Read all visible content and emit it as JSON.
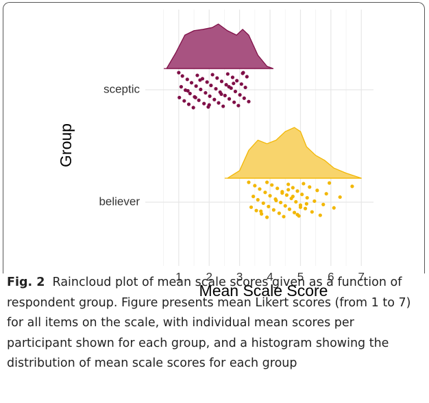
{
  "chart_data": {
    "type": "raincloud",
    "x_label": "Mean Scale Score",
    "y_label": "Group",
    "xlim": [
      -0.1,
      7.4
    ],
    "xticks": [
      1,
      2,
      3,
      4,
      5,
      6,
      7
    ],
    "grid": true,
    "groups": [
      {
        "name": "sceptic",
        "color": "#7f0f47",
        "fill": "#a85381",
        "density": {
          "x": [
            0.6,
            0.9,
            1.2,
            1.5,
            1.8,
            2.1,
            2.3,
            2.6,
            2.9,
            3.1,
            3.3,
            3.6,
            3.9,
            4.1
          ],
          "y": [
            0,
            0.35,
            0.75,
            0.85,
            0.88,
            0.92,
            1.0,
            0.85,
            0.75,
            0.88,
            0.75,
            0.3,
            0.05,
            0
          ]
        },
        "points": [
          1.0,
          1.02,
          1.08,
          1.12,
          1.18,
          1.22,
          1.28,
          1.33,
          1.37,
          1.42,
          1.48,
          1.52,
          1.57,
          1.61,
          1.66,
          1.72,
          1.78,
          1.83,
          1.88,
          1.93,
          1.97,
          2.02,
          2.06,
          2.11,
          2.17,
          2.22,
          2.26,
          2.31,
          2.36,
          2.41,
          2.46,
          2.52,
          2.56,
          2.61,
          2.66,
          2.72,
          2.77,
          2.82,
          2.86,
          2.91,
          2.96,
          3.01,
          3.06,
          3.1,
          3.15,
          3.19,
          3.24,
          3.3,
          1.3,
          1.7,
          2.0,
          2.4,
          2.8,
          3.12,
          1.55,
          2.65
        ]
      },
      {
        "name": "believer",
        "color": "#f2b705",
        "fill": "#f8d46c",
        "density": {
          "x": [
            2.6,
            3.0,
            3.3,
            3.6,
            3.9,
            4.2,
            4.5,
            4.8,
            5.0,
            5.2,
            5.5,
            5.8,
            6.1,
            6.5,
            7.0
          ],
          "y": [
            0,
            0.15,
            0.55,
            0.75,
            0.68,
            0.75,
            0.92,
            1.0,
            0.92,
            0.62,
            0.45,
            0.35,
            0.2,
            0.1,
            0
          ]
        },
        "points": [
          3.3,
          3.38,
          3.45,
          3.5,
          3.55,
          3.6,
          3.66,
          3.72,
          3.78,
          3.84,
          3.9,
          3.95,
          4.0,
          4.06,
          4.12,
          4.18,
          4.24,
          4.3,
          4.35,
          4.4,
          4.45,
          4.5,
          4.55,
          4.6,
          4.64,
          4.7,
          4.75,
          4.8,
          4.85,
          4.9,
          4.95,
          5.0,
          5.05,
          5.1,
          5.16,
          5.22,
          5.3,
          5.38,
          5.46,
          5.55,
          5.65,
          5.75,
          5.85,
          5.95,
          6.1,
          6.3,
          6.7,
          3.7,
          4.2,
          4.6,
          4.9,
          5.2,
          4.4,
          3.9,
          5.0,
          4.75
        ]
      }
    ]
  },
  "caption_label": "Fig. 2",
  "caption": "Raincloud plot of mean scale scores given as a function of respondent group. Figure presents mean Likert scores (from 1 to 7) for all items on the scale, with individual mean scores per participant shown for each group, and a histogram showing the distribution of mean scale scores for each group"
}
